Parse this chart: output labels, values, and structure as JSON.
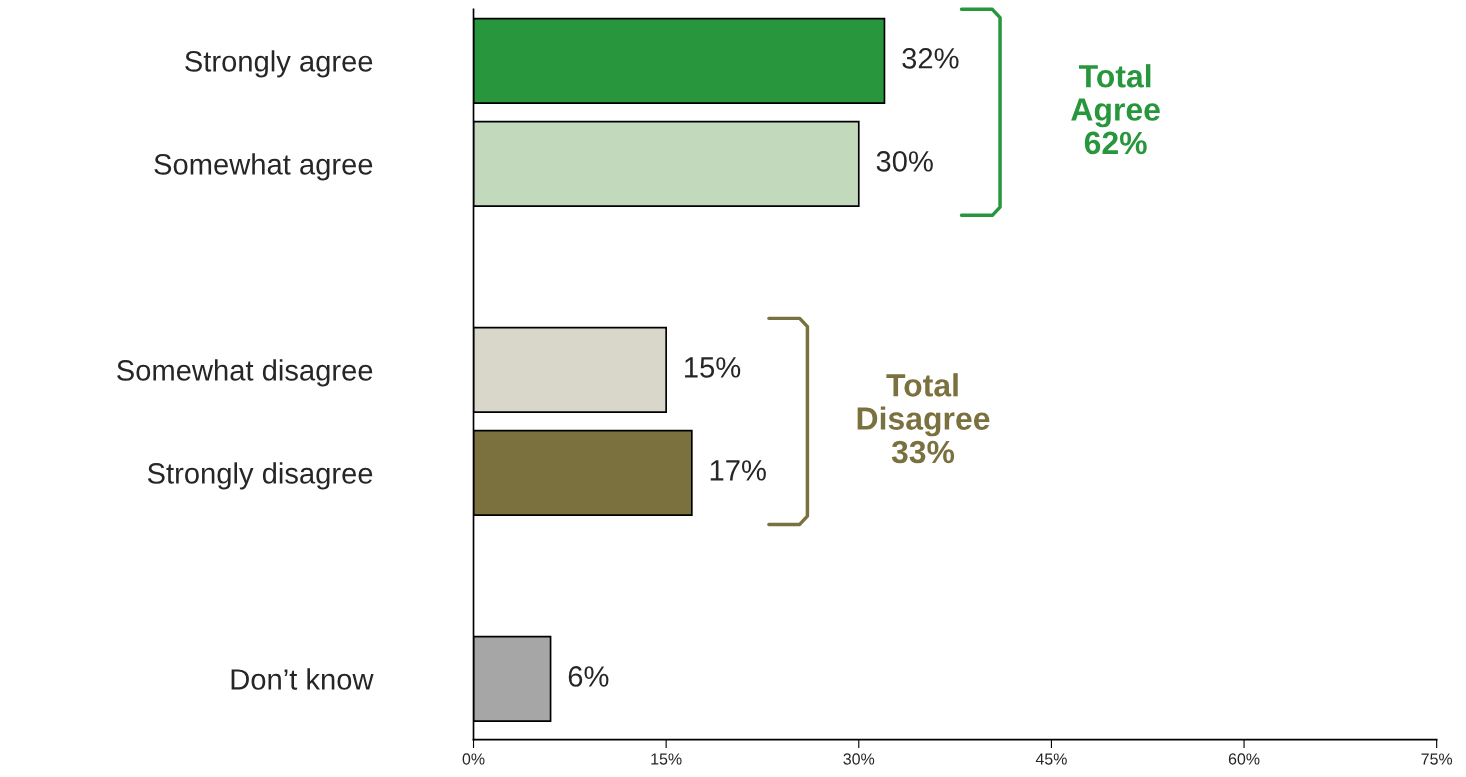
{
  "chart_data": {
    "type": "bar",
    "orientation": "horizontal",
    "categories": [
      "Strongly agree",
      "Somewhat agree",
      null,
      "Somewhat disagree",
      "Strongly disagree",
      null,
      "Don’t know"
    ],
    "values": [
      32,
      30,
      null,
      15,
      17,
      null,
      6
    ],
    "colors": [
      "#28963c",
      "#c2d9bc",
      null,
      "#d9d6ca",
      "#7a713f",
      null,
      "#a6a6a6"
    ],
    "value_labels": [
      "32%",
      "30%",
      null,
      "15%",
      "17%",
      null,
      "6%"
    ],
    "xlim": [
      0,
      75
    ],
    "xticks": [
      {
        "value": 0,
        "label": "0%"
      },
      {
        "value": 15,
        "label": "15%"
      },
      {
        "value": 30,
        "label": "30%"
      },
      {
        "value": 45,
        "label": "45%"
      },
      {
        "value": 60,
        "label": "60%"
      },
      {
        "value": 75,
        "label": "75%"
      }
    ],
    "annotations": [
      "Total\nAgree\n62%",
      "Total\nDisagree\n33%"
    ],
    "grid": false
  }
}
